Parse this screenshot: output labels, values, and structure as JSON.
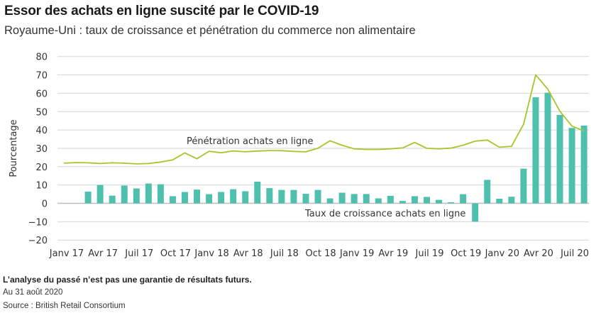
{
  "header": {
    "title": "Essor des achats en ligne suscité par le COVID-19",
    "subtitle": "Royaume-Uni : taux de croissance et pénétration du commerce non alimentaire"
  },
  "footer": {
    "disclaimer": "L’analyse du passé n’est pas une garantie de résultats futurs.",
    "date": "Au 31 août 2020",
    "source": "Source : British Retail Consortium"
  },
  "colors": {
    "bars": "#4fbfae",
    "line": "#a9c42a",
    "grid": "#d6d6d6",
    "text": "#222222"
  },
  "chart_data": {
    "type": "bar+line",
    "title": "Essor des achats en ligne suscité par le COVID-19",
    "subtitle": "Royaume-Uni : taux de croissance et pénétration du commerce non alimentaire",
    "xlabel": "",
    "ylabel": "Pourcentage",
    "ylim": [
      -20,
      80
    ],
    "yticks": [
      -20,
      -10,
      0,
      10,
      20,
      30,
      40,
      50,
      60,
      70,
      80
    ],
    "grid": true,
    "legend": "inline annotations",
    "x_tick_labels": [
      "Janv 17",
      "Avr 17",
      "Juil 17",
      "Oct 17",
      "Janv 18",
      "Avr 18",
      "Juil 18",
      "Oct 18",
      "Janv 19",
      "Avr 19",
      "Juil 19",
      "Oct 19",
      "Janv 20",
      "Avr 20",
      "Juil 20"
    ],
    "x": [
      "2017-01",
      "2017-02",
      "2017-03",
      "2017-04",
      "2017-05",
      "2017-06",
      "2017-07",
      "2017-08",
      "2017-09",
      "2017-10",
      "2017-11",
      "2017-12",
      "2018-01",
      "2018-02",
      "2018-03",
      "2018-04",
      "2018-05",
      "2018-06",
      "2018-07",
      "2018-08",
      "2018-09",
      "2018-10",
      "2018-11",
      "2018-12",
      "2019-01",
      "2019-02",
      "2019-03",
      "2019-04",
      "2019-05",
      "2019-06",
      "2019-07",
      "2019-08",
      "2019-09",
      "2019-10",
      "2019-11",
      "2019-12",
      "2020-01",
      "2020-02",
      "2020-03",
      "2020-04",
      "2020-05",
      "2020-06",
      "2020-07",
      "2020-08"
    ],
    "series": [
      {
        "name": "Taux de croissance achats en ligne",
        "type": "bar",
        "values": [
          null,
          null,
          6.4,
          10.0,
          4.2,
          9.7,
          8.1,
          10.8,
          10.4,
          3.9,
          6.2,
          7.5,
          5.0,
          6.2,
          7.7,
          6.6,
          11.8,
          8.3,
          7.3,
          7.3,
          5.2,
          7.3,
          2.7,
          5.8,
          5.1,
          5.1,
          2.7,
          4.1,
          1.3,
          3.9,
          3.5,
          1.9,
          0.6,
          5.0,
          -10.0,
          12.8,
          2.5,
          3.6,
          18.9,
          57.8,
          60.3,
          48.2,
          41.1,
          42.4
        ]
      },
      {
        "name": "Pénétration achats en ligne",
        "type": "line",
        "values": [
          21.9,
          22.2,
          22.1,
          21.7,
          22.1,
          21.9,
          21.5,
          21.7,
          22.5,
          23.7,
          27.5,
          24.3,
          28.4,
          27.6,
          28.6,
          28.1,
          28.5,
          28.8,
          28.7,
          28.3,
          28.1,
          30.0,
          34.1,
          31.7,
          29.7,
          29.4,
          29.4,
          29.7,
          30.2,
          33.2,
          30.0,
          29.7,
          30.1,
          31.7,
          33.9,
          34.5,
          30.6,
          31.1,
          43.1,
          70.0,
          62.3,
          50.2,
          42.1,
          39.5
        ]
      }
    ],
    "annotations": [
      {
        "text": "Pénétration achats en ligne",
        "near_series": "line"
      },
      {
        "text": "Taux de croissance achats en ligne",
        "near_series": "bar"
      }
    ]
  }
}
